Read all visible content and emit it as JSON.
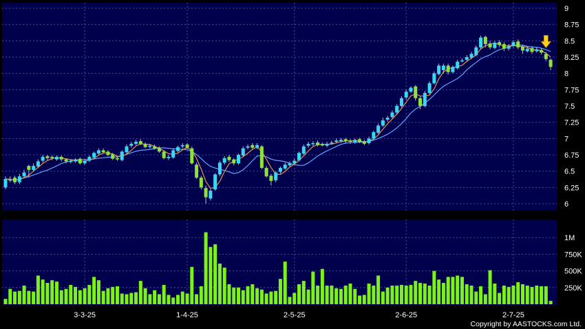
{
  "copyright": "Copyright by AASTOCKS.com Ltd.",
  "colors": {
    "background": "#000000",
    "plot_background": "#00004d",
    "grid": "#3d4fa0",
    "up_candle": "#38d7f2",
    "down_candle": "#8ee23a",
    "wick": "#b8bcc8",
    "ma_short": "#e8924a",
    "ma_long": "#5ea6ff",
    "volume": "#7cf21a",
    "arrow": "#ffd21f"
  },
  "chart_data": [
    {
      "type": "candlestick",
      "title": "",
      "ylim": [
        6,
        9
      ],
      "y_ticks": [
        "6",
        "6.25",
        "6.5",
        "6.75",
        "7",
        "7.25",
        "7.5",
        "7.75",
        "8",
        "8.25",
        "8.5",
        "8.75",
        "9"
      ],
      "x_ticks": [
        "3-3-25",
        "1-4-25",
        "2-5-25",
        "2-6-25",
        "2-7-25"
      ],
      "x_tick_session_index": [
        17,
        39,
        62,
        86,
        109
      ],
      "grid": true,
      "indicators": [
        "short moving average",
        "long moving average"
      ],
      "annotation": "down arrow above latest session",
      "series": [
        {
          "close": [
            6.38,
            6.37,
            6.33,
            6.42,
            6.48,
            6.52,
            6.58,
            6.65,
            6.72,
            6.7,
            6.7,
            6.72,
            6.68,
            6.65,
            6.66,
            6.68,
            6.62,
            6.66,
            6.72,
            6.78,
            6.82,
            6.79,
            6.75,
            6.69,
            6.68,
            6.8,
            6.88,
            6.92,
            6.95,
            6.92,
            6.87,
            6.89,
            6.85,
            6.8,
            6.7,
            6.72,
            6.82,
            6.87,
            6.9,
            6.86,
            6.62,
            6.4,
            6.25,
            6.1,
            6.2,
            6.45,
            6.63,
            6.7,
            6.67,
            6.62,
            6.75,
            6.85,
            6.88,
            6.86,
            6.9,
            6.55,
            6.42,
            6.35,
            6.48,
            6.55,
            6.6,
            6.62,
            6.66,
            6.78,
            6.88,
            6.92,
            6.93,
            6.9,
            6.9,
            6.92,
            6.94,
            6.97,
            6.98,
            6.96,
            6.95,
            6.98,
            6.95,
            6.92,
            7.0,
            7.1,
            7.2,
            7.28,
            7.32,
            7.4,
            7.5,
            7.62,
            7.72,
            7.78,
            7.62,
            7.5,
            7.7,
            7.85,
            8.0,
            8.12,
            8.12,
            8.02,
            8.1,
            8.18,
            8.2,
            8.25,
            8.3,
            8.4,
            8.55,
            8.45,
            8.4,
            8.47,
            8.44,
            8.38,
            8.42,
            8.48,
            8.4,
            8.35,
            8.38,
            8.33,
            8.37,
            8.32,
            8.22,
            8.1
          ],
          "open": [
            6.25,
            6.36,
            6.4,
            6.33,
            6.42,
            6.58,
            6.52,
            6.57,
            6.66,
            6.73,
            6.72,
            6.68,
            6.72,
            6.68,
            6.64,
            6.65,
            6.69,
            6.62,
            6.66,
            6.71,
            6.77,
            6.82,
            6.8,
            6.76,
            6.7,
            6.67,
            6.79,
            6.89,
            6.92,
            6.96,
            6.91,
            6.87,
            6.88,
            6.86,
            6.8,
            6.7,
            6.71,
            6.81,
            6.88,
            6.91,
            6.85,
            6.6,
            6.4,
            6.24,
            6.08,
            6.22,
            6.45,
            6.63,
            6.72,
            6.68,
            6.62,
            6.74,
            6.86,
            6.9,
            6.86,
            6.88,
            6.55,
            6.43,
            6.36,
            6.49,
            6.54,
            6.59,
            6.62,
            6.67,
            6.77,
            6.89,
            6.92,
            6.94,
            6.91,
            6.89,
            6.93,
            6.95,
            6.96,
            6.99,
            6.97,
            6.94,
            6.99,
            6.96,
            6.93,
            7.0,
            7.09,
            7.2,
            7.29,
            7.33,
            7.4,
            7.5,
            7.63,
            7.72,
            7.8,
            7.62,
            7.5,
            7.7,
            7.85,
            7.99,
            8.05,
            8.12,
            8.02,
            8.08,
            8.19,
            8.21,
            8.24,
            8.28,
            8.4,
            8.56,
            8.46,
            8.39,
            8.48,
            8.45,
            8.38,
            8.42,
            8.49,
            8.41,
            8.34,
            8.39,
            8.34,
            8.36,
            8.3,
            8.21
          ],
          "high": [
            6.42,
            6.42,
            6.43,
            6.46,
            6.52,
            6.6,
            6.62,
            6.68,
            6.75,
            6.75,
            6.74,
            6.74,
            6.74,
            6.7,
            6.68,
            6.7,
            6.71,
            6.68,
            6.74,
            6.8,
            6.85,
            6.85,
            6.82,
            6.78,
            6.72,
            6.82,
            6.91,
            6.95,
            6.98,
            6.99,
            6.94,
            6.92,
            6.91,
            6.88,
            6.82,
            6.75,
            6.85,
            6.89,
            6.93,
            6.93,
            6.88,
            6.63,
            6.43,
            6.28,
            6.23,
            6.47,
            6.66,
            6.73,
            6.75,
            6.7,
            6.77,
            6.88,
            6.91,
            6.93,
            6.93,
            6.9,
            6.58,
            6.46,
            6.5,
            6.57,
            6.63,
            6.65,
            6.69,
            6.8,
            6.91,
            6.95,
            6.96,
            6.97,
            6.94,
            6.95,
            6.97,
            7.0,
            7.01,
            7.01,
            6.99,
            7.0,
            7.01,
            6.98,
            7.03,
            7.12,
            7.23,
            7.32,
            7.35,
            7.43,
            7.53,
            7.65,
            7.75,
            7.8,
            7.82,
            7.65,
            7.73,
            7.88,
            8.03,
            8.15,
            8.15,
            8.15,
            8.12,
            8.21,
            8.23,
            8.28,
            8.33,
            8.43,
            8.58,
            8.58,
            8.5,
            8.5,
            8.51,
            8.48,
            8.45,
            8.51,
            8.52,
            8.44,
            8.41,
            8.42,
            8.4,
            8.39,
            8.33,
            8.23
          ],
          "low": [
            6.22,
            6.33,
            6.3,
            6.3,
            6.4,
            6.4,
            6.5,
            6.55,
            6.63,
            6.67,
            6.67,
            6.66,
            6.65,
            6.62,
            6.62,
            6.63,
            6.6,
            6.6,
            6.64,
            6.69,
            6.75,
            6.77,
            6.73,
            6.67,
            6.66,
            6.65,
            6.77,
            6.86,
            6.9,
            6.9,
            6.85,
            6.85,
            6.83,
            6.78,
            6.68,
            6.67,
            6.69,
            6.79,
            6.85,
            6.84,
            6.6,
            6.38,
            6.22,
            6.0,
            6.05,
            6.2,
            6.42,
            6.6,
            6.64,
            6.59,
            6.6,
            6.72,
            6.84,
            6.84,
            6.84,
            6.53,
            6.4,
            6.28,
            6.33,
            6.46,
            6.52,
            6.57,
            6.6,
            6.65,
            6.75,
            6.86,
            6.89,
            6.88,
            6.88,
            6.87,
            6.91,
            6.93,
            6.94,
            6.93,
            6.92,
            6.92,
            6.93,
            6.9,
            6.91,
            6.98,
            7.07,
            7.18,
            7.26,
            7.31,
            7.38,
            7.48,
            7.6,
            7.7,
            7.58,
            7.45,
            7.48,
            7.68,
            7.83,
            7.97,
            8.0,
            7.98,
            8.0,
            8.06,
            8.17,
            8.19,
            8.22,
            8.26,
            8.38,
            8.4,
            8.37,
            8.37,
            8.4,
            8.34,
            8.35,
            8.4,
            8.37,
            8.3,
            8.32,
            8.3,
            8.32,
            8.29,
            8.19,
            8.05
          ]
        }
      ]
    },
    {
      "type": "bar",
      "title": "",
      "ylim": [
        0,
        1250000
      ],
      "y_ticks": [
        "250K",
        "500K",
        "750K",
        "1M"
      ],
      "y_tick_values": [
        250000,
        500000,
        750000,
        1000000
      ],
      "series": [
        {
          "values": [
            80000,
            230000,
            190000,
            200000,
            280000,
            200000,
            190000,
            430000,
            370000,
            320000,
            360000,
            340000,
            210000,
            230000,
            290000,
            260000,
            210000,
            240000,
            290000,
            410000,
            360000,
            200000,
            240000,
            260000,
            270000,
            160000,
            150000,
            170000,
            180000,
            350000,
            240000,
            150000,
            210000,
            150000,
            290000,
            140000,
            100000,
            140000,
            190000,
            160000,
            560000,
            150000,
            270000,
            1080000,
            860000,
            900000,
            610000,
            550000,
            300000,
            250000,
            250000,
            210000,
            270000,
            300000,
            240000,
            220000,
            160000,
            190000,
            200000,
            380000,
            640000,
            110000,
            170000,
            300000,
            350000,
            220000,
            490000,
            280000,
            530000,
            280000,
            280000,
            240000,
            230000,
            280000,
            310000,
            230000,
            130000,
            140000,
            310000,
            280000,
            430000,
            190000,
            250000,
            280000,
            280000,
            290000,
            280000,
            290000,
            350000,
            320000,
            310000,
            280000,
            500000,
            370000,
            320000,
            410000,
            410000,
            430000,
            410000,
            300000,
            280000,
            190000,
            270000,
            150000,
            510000,
            310000,
            170000,
            280000,
            260000,
            280000,
            330000,
            300000,
            280000,
            260000,
            280000,
            270000,
            270000,
            50000
          ]
        }
      ]
    }
  ]
}
